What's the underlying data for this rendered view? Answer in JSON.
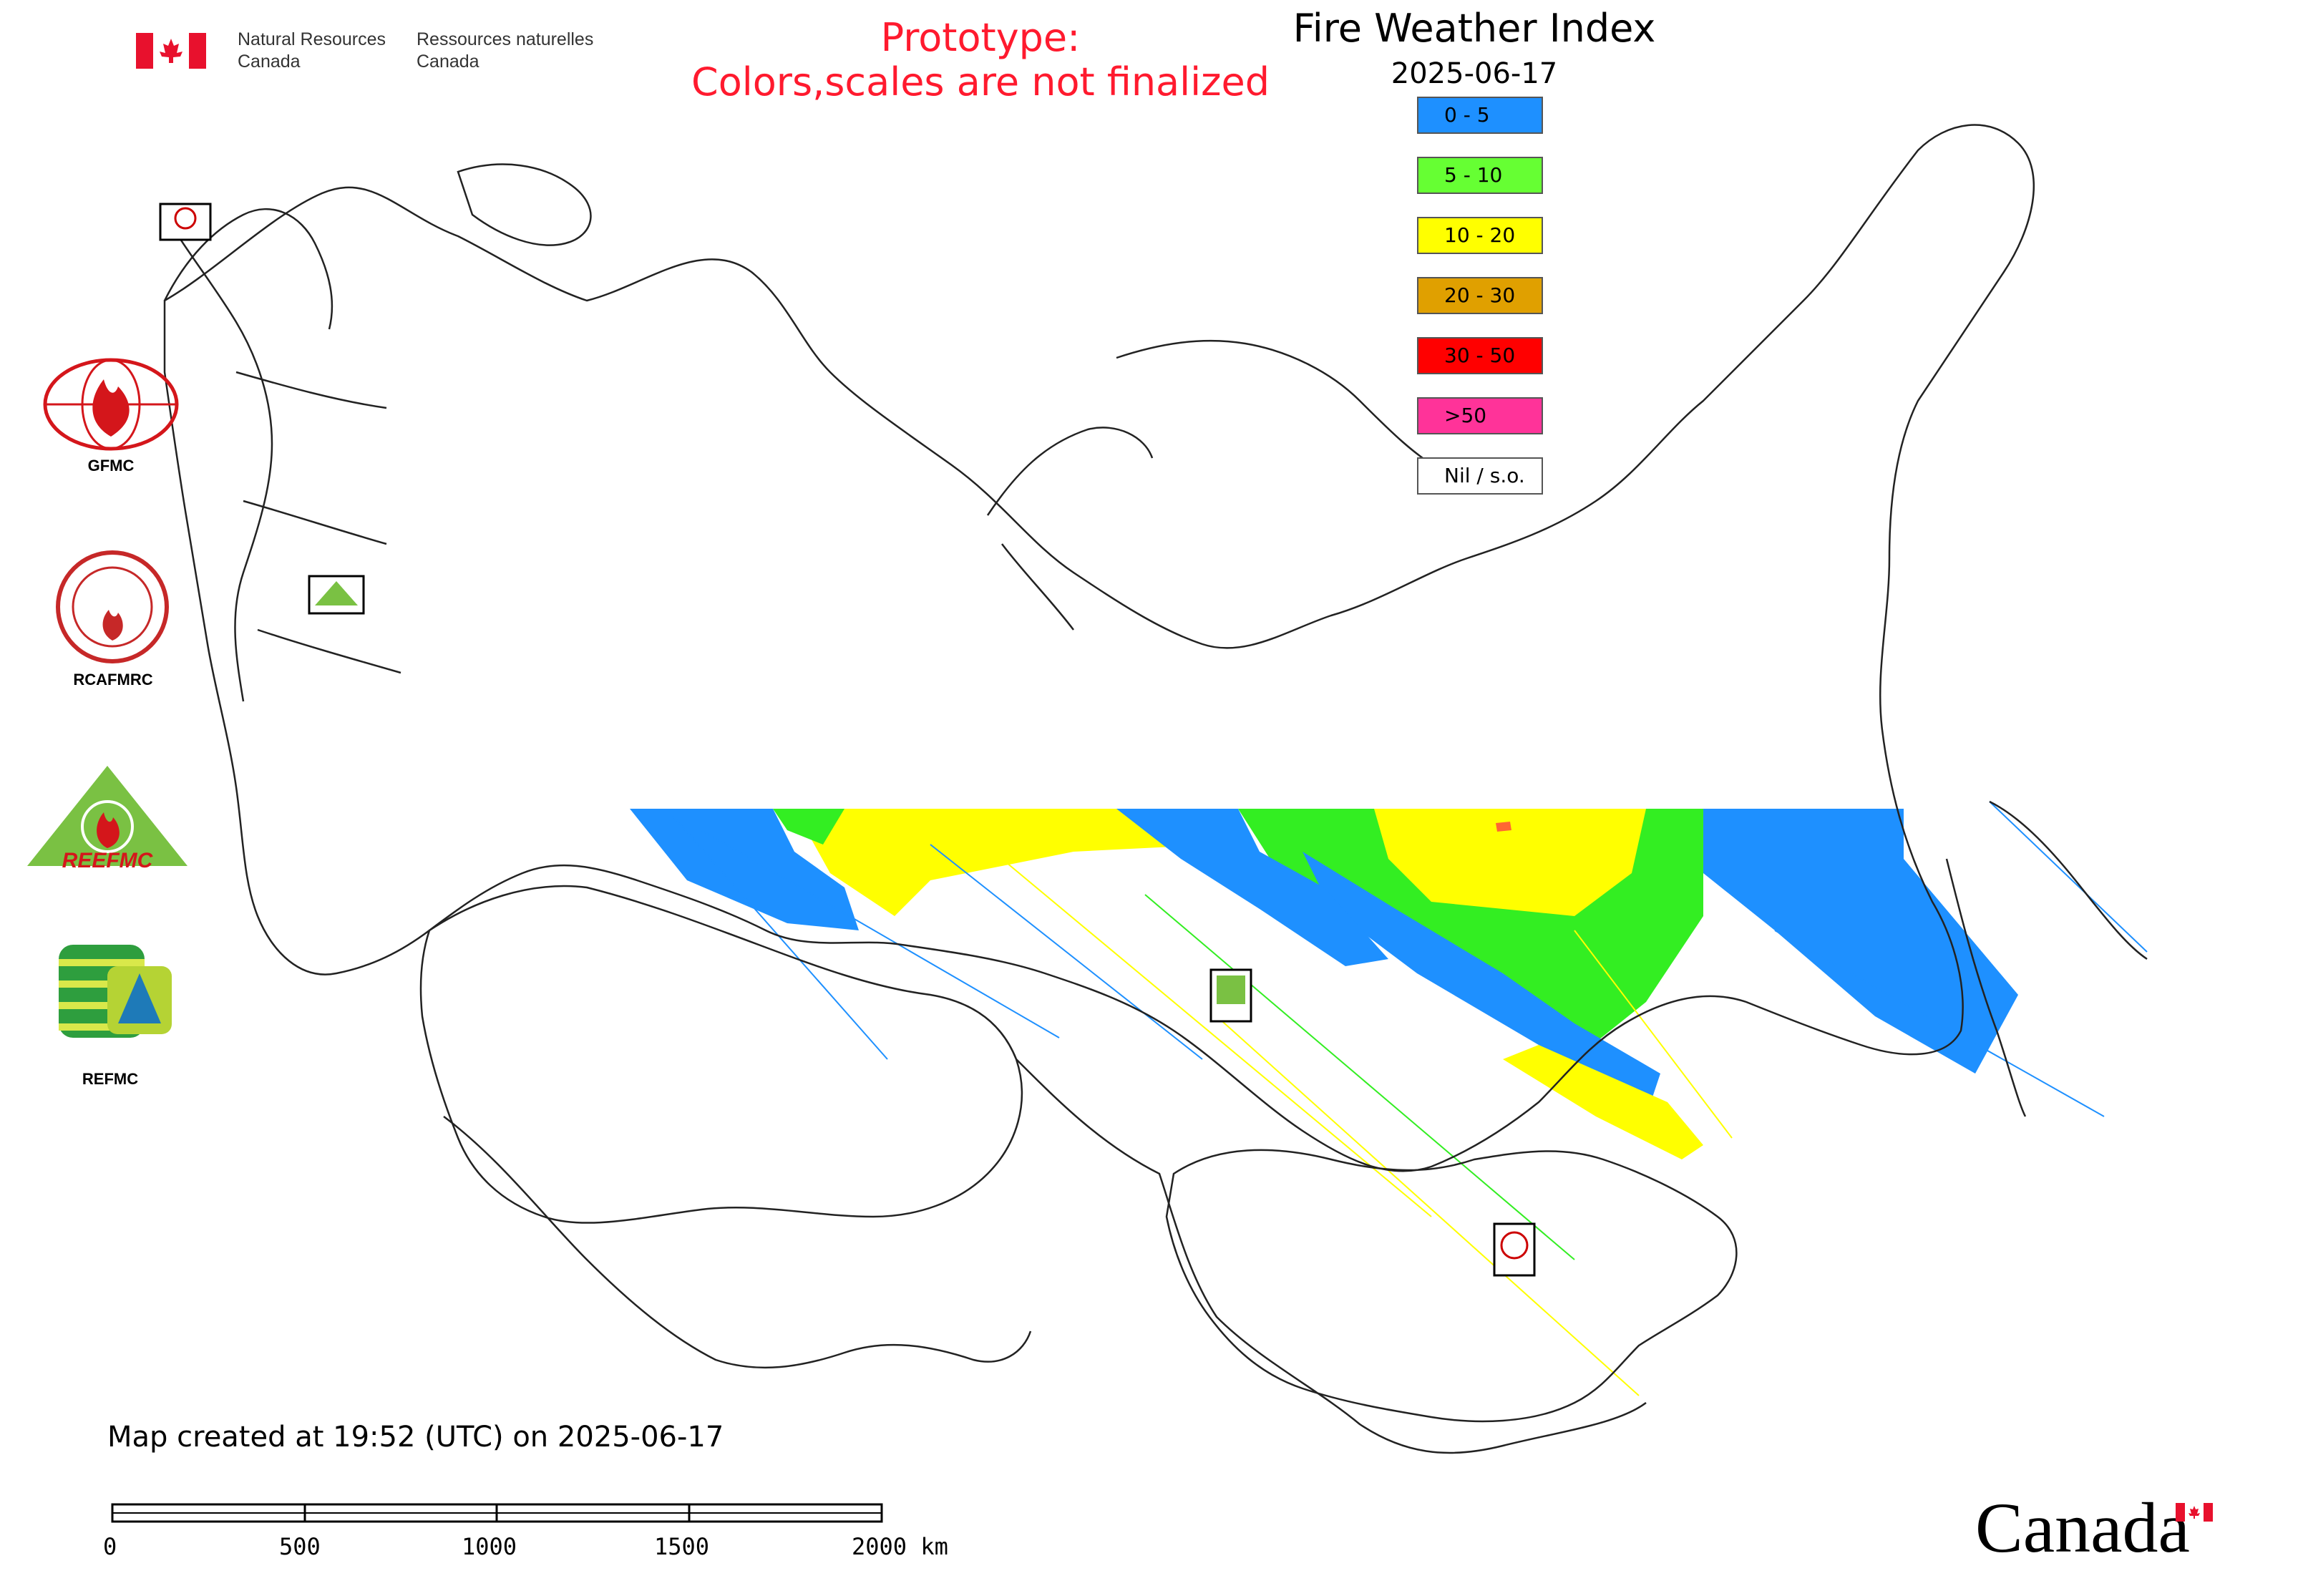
{
  "header": {
    "org_en_line1": "Natural Resources",
    "org_en_line2": "Canada",
    "org_fr_line1": "Ressources naturelles",
    "org_fr_line2": "Canada",
    "prototype_line1": "Prototype:",
    "prototype_line2": "Colors,scales are not finalized",
    "prototype_color": "#ff1a2e",
    "title": "Fire Weather Index",
    "date": "2025-06-17"
  },
  "legend": [
    {
      "label": "0 - 5",
      "color": "#1e90ff"
    },
    {
      "label": "5 - 10",
      "color": "#66ff33"
    },
    {
      "label": "10 - 20",
      "color": "#ffff00"
    },
    {
      "label": "20 - 30",
      "color": "#e0a000"
    },
    {
      "label": "30 - 50",
      "color": "#ff0000"
    },
    {
      "label": ">50",
      "color": "#ff3399"
    },
    {
      "label": "Nil / s.o.",
      "color": "#ffffff"
    }
  ],
  "logos": {
    "gfmc": "GFMC",
    "rcafmrc": "RCAFMRC",
    "reefmc_mark": "REEFMC",
    "refmc": "REFMC",
    "small_gfmc": "GFMC",
    "small_reefmc": "REEFMC",
    "small_refmc": "REFMC",
    "small_rcafmrc": "RCAFMRC"
  },
  "footer": {
    "created": "Map created at 19:52 (UTC) on 2025-06-17",
    "scale_ticks": [
      "0",
      "500",
      "1000",
      "1500",
      "2000 km"
    ],
    "wordmark": "Canada"
  }
}
